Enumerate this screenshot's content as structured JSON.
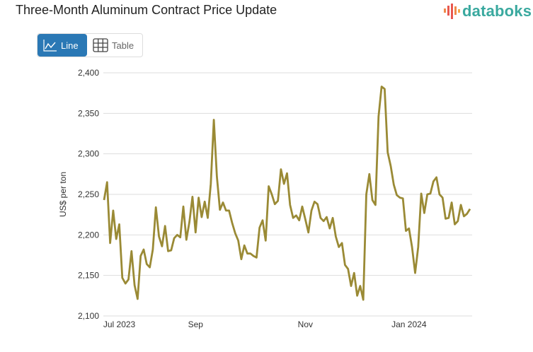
{
  "header": {
    "title": "Three-Month Aluminum Contract Price Update",
    "logo": "databoks"
  },
  "toggle": {
    "line_label": "Line",
    "table_label": "Table",
    "active": "Line"
  },
  "colors": {
    "line": "#9a8a35",
    "active_button": "#2a78b5",
    "logo": "#3aa99f",
    "grid": "#dddddd"
  },
  "chart_data": {
    "type": "line",
    "title": "Three-Month Aluminum Contract Price Update",
    "xlabel": "",
    "ylabel": "US$ per ton",
    "ylim": [
      2100,
      2400
    ],
    "yticks": [
      2100,
      2150,
      2200,
      2250,
      2300,
      2350,
      2400
    ],
    "ytick_labels": [
      "2,100",
      "2,150",
      "2,200",
      "2,250",
      "2,300",
      "2,350",
      "2,400"
    ],
    "xticks": [
      {
        "label": "Jul 2023",
        "index": 5
      },
      {
        "label": "Sep",
        "index": 30
      },
      {
        "label": "Nov",
        "index": 66
      },
      {
        "label": "Jan 2024",
        "index": 100
      }
    ],
    "grid": true,
    "legend": "none",
    "values": [
      2243,
      2265,
      2190,
      2230,
      2195,
      2213,
      2147,
      2140,
      2145,
      2180,
      2138,
      2121,
      2174,
      2182,
      2164,
      2160,
      2182,
      2234,
      2198,
      2186,
      2211,
      2180,
      2181,
      2196,
      2200,
      2197,
      2235,
      2194,
      2216,
      2247,
      2203,
      2246,
      2222,
      2241,
      2221,
      2263,
      2342,
      2272,
      2231,
      2240,
      2230,
      2230,
      2215,
      2202,
      2193,
      2170,
      2187,
      2177,
      2177,
      2174,
      2172,
      2209,
      2218,
      2193,
      2260,
      2250,
      2238,
      2242,
      2281,
      2263,
      2276,
      2237,
      2221,
      2224,
      2218,
      2235,
      2219,
      2203,
      2230,
      2241,
      2238,
      2221,
      2217,
      2222,
      2208,
      2221,
      2198,
      2185,
      2190,
      2163,
      2158,
      2137,
      2153,
      2125,
      2137,
      2120,
      2250,
      2275,
      2243,
      2237,
      2346,
      2383,
      2380,
      2302,
      2285,
      2262,
      2249,
      2246,
      2245,
      2205,
      2208,
      2185,
      2153,
      2185,
      2251,
      2227,
      2250,
      2251,
      2266,
      2271,
      2250,
      2246,
      2220,
      2221,
      2240,
      2213,
      2217,
      2237,
      2223,
      2226,
      2232
    ]
  }
}
